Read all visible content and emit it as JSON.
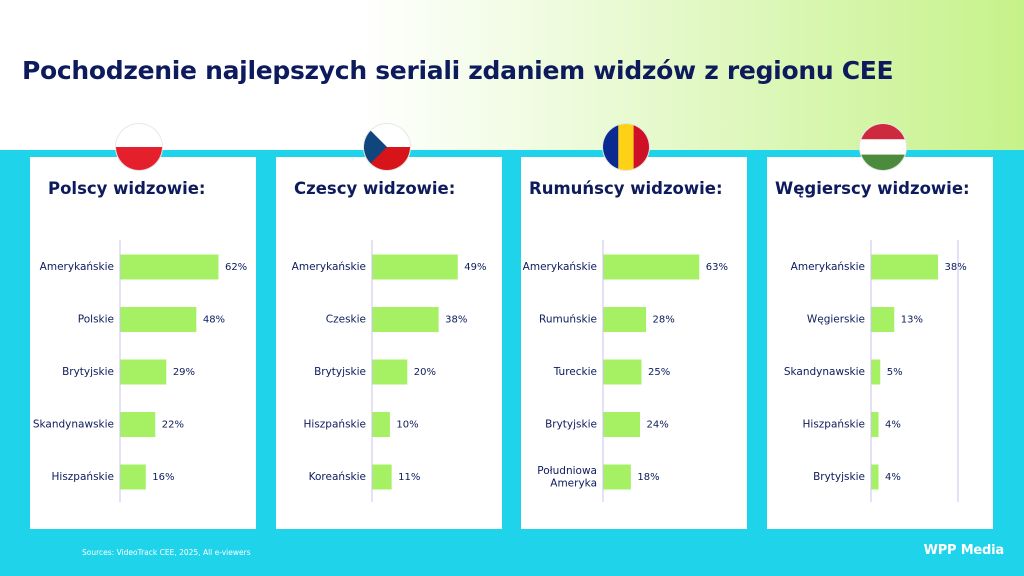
{
  "title": "Pochodzenie najlepszych seriali zdaniem widzów z regionu CEE",
  "source": "Sources: VideoTrack CEE, 2025, All e-viewers",
  "logo": "WPP Media",
  "colors": {
    "bar": "#a6f063",
    "navy": "#0d1b5c",
    "cyan": "#1fd3ea",
    "axis": "#c9c3ee"
  },
  "chart_data": [
    {
      "type": "bar",
      "orientation": "horizontal",
      "title": "Polscy widzowie:",
      "flag": "poland-flag-icon",
      "categories": [
        "Amerykańskie",
        "Polskie",
        "Brytyjskie",
        "Skandynawskie",
        "Hiszpańskie"
      ],
      "values": [
        62,
        48,
        29,
        22,
        16
      ],
      "labels": [
        "62%",
        "48%",
        "29%",
        "22%",
        "16%"
      ]
    },
    {
      "type": "bar",
      "orientation": "horizontal",
      "title": "Czescy widzowie:",
      "flag": "czech-flag-icon",
      "categories": [
        "Amerykańskie",
        "Czeskie",
        "Brytyjskie",
        "Hiszpańskie",
        "Koreańskie"
      ],
      "values": [
        49,
        38,
        20,
        10,
        11
      ],
      "labels": [
        "49%",
        "38%",
        "20%",
        "10%",
        "11%"
      ]
    },
    {
      "type": "bar",
      "orientation": "horizontal",
      "title": "Rumuńscy widzowie:",
      "flag": "romania-flag-icon",
      "categories": [
        "Amerykańskie",
        "Rumuńskie",
        "Tureckie",
        "Brytyjskie",
        "Południowa Ameryka"
      ],
      "values": [
        63,
        28,
        25,
        24,
        18
      ],
      "labels": [
        "63%",
        "28%",
        "25%",
        "24%",
        "18%"
      ]
    },
    {
      "type": "bar",
      "orientation": "horizontal",
      "title": "Węgierscy widzowie:",
      "flag": "hungary-flag-icon",
      "categories": [
        "Amerykańskie",
        "Węgierskie",
        "Skandynawskie",
        "Hiszpańskie",
        "Brytyjskie"
      ],
      "values": [
        38,
        13,
        5,
        4,
        4
      ],
      "labels": [
        "38%",
        "13%",
        "5%",
        "4%",
        "4%"
      ]
    }
  ]
}
